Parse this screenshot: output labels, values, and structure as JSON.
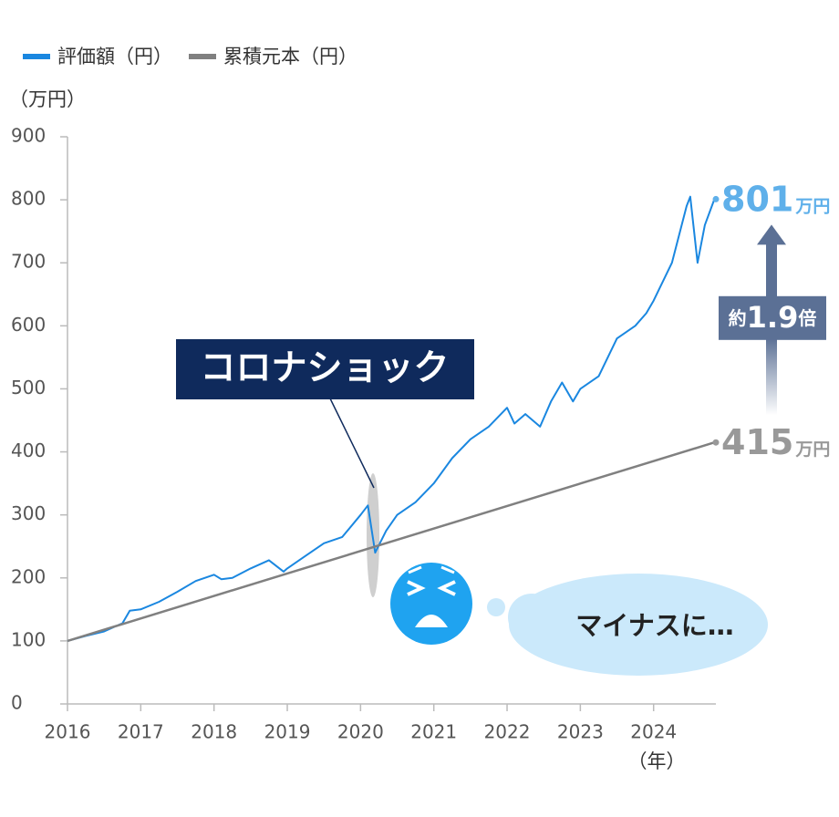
{
  "chart_data": {
    "type": "line",
    "y_unit_label": "（万円）",
    "x_unit_label": "（年）",
    "xlim": [
      2016,
      2024.85
    ],
    "xticks": [
      2016,
      2017,
      2018,
      2019,
      2020,
      2021,
      2022,
      2023,
      2024
    ],
    "ylim": [
      0,
      900
    ],
    "yticks": [
      0,
      100,
      200,
      300,
      400,
      500,
      600,
      700,
      800,
      900
    ],
    "series": [
      {
        "name": "評価額（円）",
        "color": "#1a87e0",
        "x": [
          2016.0,
          2016.25,
          2016.5,
          2016.75,
          2016.85,
          2017.0,
          2017.25,
          2017.5,
          2017.75,
          2018.0,
          2018.1,
          2018.25,
          2018.5,
          2018.75,
          2018.95,
          2019.0,
          2019.25,
          2019.5,
          2019.75,
          2020.0,
          2020.1,
          2020.2,
          2020.35,
          2020.5,
          2020.75,
          2021.0,
          2021.25,
          2021.5,
          2021.75,
          2022.0,
          2022.1,
          2022.25,
          2022.45,
          2022.6,
          2022.75,
          2022.9,
          2023.0,
          2023.25,
          2023.5,
          2023.75,
          2023.9,
          2024.0,
          2024.25,
          2024.45,
          2024.5,
          2024.6,
          2024.7,
          2024.83
        ],
        "values": [
          100,
          108,
          115,
          128,
          148,
          150,
          162,
          178,
          195,
          205,
          198,
          200,
          215,
          228,
          210,
          215,
          235,
          255,
          265,
          300,
          315,
          240,
          275,
          300,
          320,
          350,
          390,
          420,
          440,
          470,
          445,
          460,
          440,
          480,
          510,
          480,
          500,
          520,
          580,
          600,
          620,
          640,
          700,
          790,
          805,
          700,
          760,
          801
        ]
      },
      {
        "name": "累積元本（円）",
        "color": "#808080",
        "x": [
          2016.0,
          2024.83
        ],
        "values": [
          100,
          415
        ]
      }
    ],
    "end_labels": [
      {
        "value": 801,
        "unit": "万円"
      },
      {
        "value": 415,
        "unit": "万円"
      }
    ],
    "ratio_label": {
      "prefix": "約",
      "value": 1.9,
      "suffix": "倍"
    },
    "annotations": {
      "corona": "コロナショック",
      "thought": "マイナスに…"
    }
  }
}
